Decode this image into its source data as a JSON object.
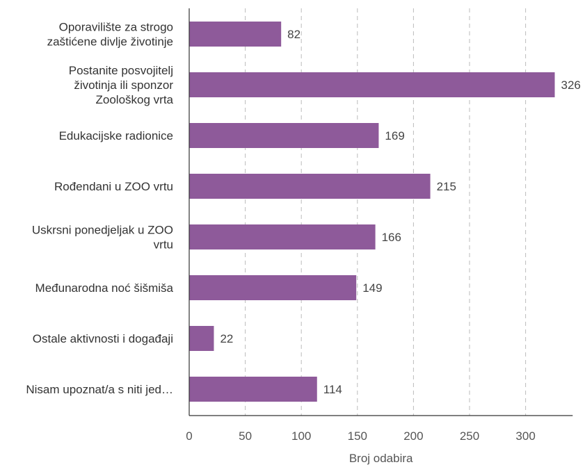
{
  "chart_data": {
    "type": "bar",
    "orientation": "horizontal",
    "categories": [
      [
        "Oporavilište za strogo",
        "zaštićene divlje životinje"
      ],
      [
        "Postanite posvojitelj",
        "životinja ili sponzor",
        "Zoološkog vrta"
      ],
      [
        "Edukacijske radionice"
      ],
      [
        "Rođendani u ZOO vrtu"
      ],
      [
        "Uskrsni ponedjeljak u ZOO",
        "vrtu"
      ],
      [
        "Međunarodna noć šišmiša"
      ],
      [
        "Ostale aktivnosti i događaji"
      ],
      [
        "Nisam upoznat/a s niti jed…"
      ]
    ],
    "values": [
      82,
      326,
      169,
      215,
      166,
      149,
      22,
      114
    ],
    "xlabel": "Broj odabira",
    "xlim": [
      0,
      342
    ],
    "xticks": [
      0,
      50,
      100,
      150,
      200,
      250,
      300
    ],
    "grid": "vertical-dashed",
    "colors": {
      "bar": "#8e5a9a",
      "grid": "#bbbbbb",
      "axis": "#333333"
    }
  }
}
